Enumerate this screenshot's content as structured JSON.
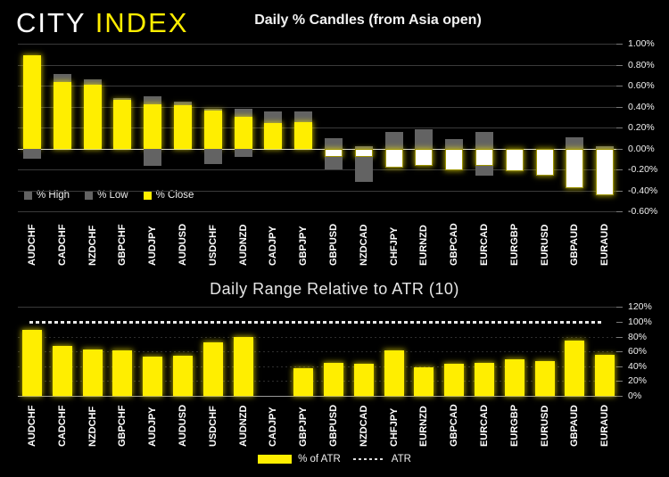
{
  "header": {
    "logo": {
      "city": "CITY",
      "index": "INDEX"
    }
  },
  "colors": {
    "accent_yellow": "#ffee00",
    "wick_gray": "#636363",
    "negative_body": "#ffffff",
    "atr_line": "#e8e8e8",
    "background": "#000000"
  },
  "chart_data": [
    {
      "type": "bar",
      "subtype": "daily-percent-candles",
      "title": "Daily % Candles (from Asia open)",
      "categories": [
        "AUDCHF",
        "CADCHF",
        "NZDCHF",
        "GBPCHF",
        "AUDJPY",
        "AUDUSD",
        "USDCHF",
        "AUDNZD",
        "CADJPY",
        "GBPJPY",
        "GBPUSD",
        "NZDCAD",
        "CHFJPY",
        "EURNZD",
        "GBPCAD",
        "EURCAD",
        "EURGBP",
        "EURUSD",
        "GBPAUD",
        "EURAUD"
      ],
      "series": [
        {
          "name": "% High",
          "values": [
            0.89,
            0.71,
            0.66,
            0.48,
            0.5,
            0.45,
            0.38,
            0.38,
            0.35,
            0.35,
            0.1,
            0.02,
            0.16,
            0.18,
            0.09,
            0.16,
            0.0,
            0.0,
            0.11,
            0.02
          ]
        },
        {
          "name": "% Low",
          "values": [
            -0.1,
            0.0,
            0.0,
            0.0,
            -0.17,
            0.0,
            -0.15,
            -0.08,
            0.0,
            0.0,
            -0.2,
            -0.32,
            -0.18,
            -0.17,
            -0.21,
            -0.26,
            -0.22,
            -0.26,
            -0.38,
            -0.45
          ]
        },
        {
          "name": "% Close",
          "values": [
            0.89,
            0.63,
            0.61,
            0.46,
            0.42,
            0.41,
            0.36,
            0.3,
            0.24,
            0.25,
            -0.08,
            -0.08,
            -0.18,
            -0.17,
            -0.21,
            -0.17,
            -0.22,
            -0.26,
            -0.38,
            -0.45
          ]
        }
      ],
      "y_ticks": [
        "1.00%",
        "0.80%",
        "0.60%",
        "0.40%",
        "0.20%",
        "0.00%",
        "-0.20%",
        "-0.40%",
        "-0.60%"
      ],
      "y_tick_values": [
        1.0,
        0.8,
        0.6,
        0.4,
        0.2,
        0.0,
        -0.2,
        -0.4,
        -0.6
      ],
      "ylim": [
        -0.6,
        1.0
      ],
      "grid": true,
      "legend_position": "bottom-left",
      "legend": [
        {
          "label": "% High",
          "color": "#636363"
        },
        {
          "label": "% Low",
          "color": "#636363"
        },
        {
          "label": "% Close",
          "color": "#ffee00"
        }
      ]
    },
    {
      "type": "bar",
      "title": "Daily Range Relative to ATR (10)",
      "categories": [
        "AUDCHF",
        "CADCHF",
        "NZDCHF",
        "GBPCHF",
        "AUDJPY",
        "AUDUSD",
        "USDCHF",
        "AUDNZD",
        "CADJPY",
        "GBPJPY",
        "GBPUSD",
        "NZDCAD",
        "CHFJPY",
        "EURNZD",
        "GBPCAD",
        "EURCAD",
        "EURGBP",
        "EURUSD",
        "GBPAUD",
        "EURAUD"
      ],
      "series": [
        {
          "name": "% of ATR",
          "values": [
            89,
            67,
            63,
            62,
            53,
            54,
            72,
            80,
            0,
            37,
            45,
            43,
            62,
            39,
            43,
            44,
            49,
            47,
            75,
            55
          ]
        }
      ],
      "reference_line": {
        "name": "ATR",
        "value": 100
      },
      "y_ticks": [
        "120%",
        "100%",
        "80%",
        "60%",
        "40%",
        "20%",
        "0%"
      ],
      "y_tick_values": [
        120,
        100,
        80,
        60,
        40,
        20,
        0
      ],
      "ylim": [
        0,
        120
      ],
      "grid": true,
      "legend_position": "bottom-center",
      "legend": [
        {
          "label": "% of ATR",
          "color": "#ffee00"
        },
        {
          "label": "ATR",
          "style": "dotted"
        }
      ]
    }
  ]
}
